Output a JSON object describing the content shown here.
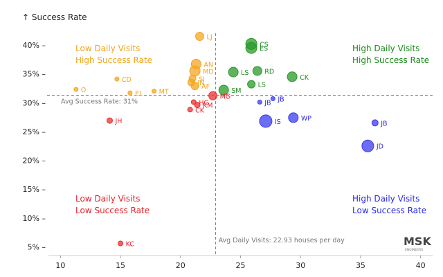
{
  "chart_data": {
    "type": "scatter",
    "ylabel": "↑ Success Rate",
    "xlim": [
      9,
      41
    ],
    "ylim": [
      3.5,
      43
    ],
    "x_ticks": [
      10,
      15,
      20,
      25,
      30,
      35,
      40
    ],
    "y_ticks": [
      5,
      10,
      15,
      20,
      25,
      30,
      35,
      40
    ],
    "y_tick_labels": [
      "5% –",
      "10% –",
      "15% –",
      "20% –",
      "25% –",
      "30% –",
      "35% –",
      "40% –"
    ],
    "ref_lines": {
      "avg_x": 22.93,
      "avg_y": 31.3,
      "x_label": "Avg Daily Visits: 22.93 houses per day",
      "y_label": "Avg Success Rate: 31%"
    },
    "quadrants": [
      {
        "line1": "Low Daily Visits",
        "line2": "High Success Rate",
        "color": "#f0a51c"
      },
      {
        "line1": "High Daily Visits",
        "line2": "High Success Rate",
        "color": "#1a8a1a"
      },
      {
        "line1": "Low Daily Visits",
        "line2": "Low Success Rate",
        "color": "#e8202a"
      },
      {
        "line1": "High Daily Visits",
        "line2": "Low Success Rate",
        "color": "#2a2ae8"
      }
    ],
    "watermark": "MSK",
    "watermark_sub": "ENGINEERS",
    "colors": {
      "orange": "#f5a623",
      "green": "#2a9a2a",
      "red": "#e8312f",
      "blue": "#3b3bf0"
    },
    "points": [
      {
        "label": "LJ",
        "x": 21.6,
        "y": 41.5,
        "size": 6,
        "group": "orange"
      },
      {
        "label": "AN",
        "x": 21.3,
        "y": 36.7,
        "size": 7,
        "group": "orange"
      },
      {
        "label": "MD",
        "x": 21.2,
        "y": 35.5,
        "size": 7.5,
        "group": "orange"
      },
      {
        "label": "SI",
        "x": 21.0,
        "y": 34.2,
        "size": 5,
        "group": "orange"
      },
      {
        "label": "JN",
        "x": 20.9,
        "y": 33.5,
        "size": 5,
        "group": "orange"
      },
      {
        "label": "AF",
        "x": 21.2,
        "y": 32.9,
        "size": 5.5,
        "group": "orange"
      },
      {
        "label": "CD",
        "x": 14.7,
        "y": 34.1,
        "size": 3,
        "group": "orange"
      },
      {
        "label": "O",
        "x": 11.3,
        "y": 32.3,
        "size": 3,
        "group": "orange"
      },
      {
        "label": "EL",
        "x": 15.8,
        "y": 31.7,
        "size": 3,
        "group": "orange"
      },
      {
        "label": "MT",
        "x": 17.8,
        "y": 32.0,
        "size": 3,
        "group": "orange"
      },
      {
        "label": "CS",
        "x": 25.9,
        "y": 40.2,
        "size": 8,
        "group": "green"
      },
      {
        "label": "ES",
        "x": 25.9,
        "y": 39.5,
        "size": 8,
        "group": "green"
      },
      {
        "label": "LS",
        "x": 24.4,
        "y": 35.3,
        "size": 7,
        "group": "green"
      },
      {
        "label": "RD",
        "x": 26.4,
        "y": 35.5,
        "size": 6.5,
        "group": "green"
      },
      {
        "label": "CK",
        "x": 29.3,
        "y": 34.5,
        "size": 7,
        "group": "green"
      },
      {
        "label": "LS",
        "x": 25.9,
        "y": 33.2,
        "size": 5.5,
        "group": "green"
      },
      {
        "label": "SM",
        "x": 23.6,
        "y": 32.2,
        "size": 7,
        "group": "green"
      },
      {
        "label": "MG",
        "x": 22.7,
        "y": 31.2,
        "size": 6,
        "group": "red"
      },
      {
        "label": "HG",
        "x": 21.1,
        "y": 30.1,
        "size": 3.5,
        "group": "red"
      },
      {
        "label": "KM",
        "x": 21.4,
        "y": 29.6,
        "size": 4,
        "group": "red"
      },
      {
        "label": "CK",
        "x": 20.8,
        "y": 28.8,
        "size": 3.5,
        "group": "red"
      },
      {
        "label": "JH",
        "x": 14.1,
        "y": 26.9,
        "size": 4,
        "group": "red"
      },
      {
        "label": "KC",
        "x": 15.0,
        "y": 5.6,
        "size": 3.5,
        "group": "red"
      },
      {
        "label": "JB",
        "x": 26.6,
        "y": 30.1,
        "size": 3,
        "group": "blue"
      },
      {
        "label": "JB",
        "x": 27.7,
        "y": 30.7,
        "size": 3,
        "group": "blue"
      },
      {
        "label": "WP",
        "x": 29.4,
        "y": 27.4,
        "size": 7,
        "group": "blue"
      },
      {
        "label": "IS",
        "x": 27.1,
        "y": 26.8,
        "size": 9,
        "group": "blue"
      },
      {
        "label": "JB",
        "x": 36.2,
        "y": 26.5,
        "size": 4.5,
        "group": "blue"
      },
      {
        "label": "JD",
        "x": 35.6,
        "y": 22.5,
        "size": 8.5,
        "group": "blue"
      }
    ]
  }
}
